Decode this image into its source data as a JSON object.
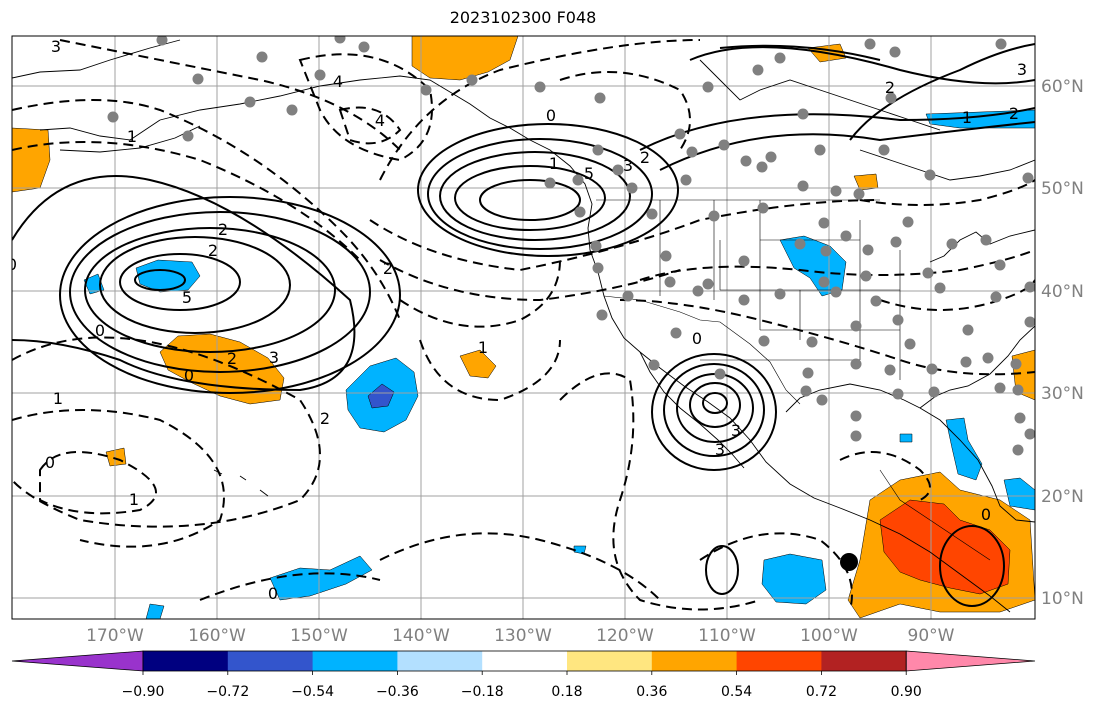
{
  "title": "2023102300 F048",
  "lon_labels": [
    "170°W",
    "160°W",
    "150°W",
    "140°W",
    "130°W",
    "120°W",
    "110°W",
    "100°W",
    "90°W"
  ],
  "lat_labels": [
    "60°N",
    "50°N",
    "40°N",
    "30°N",
    "20°N",
    "10°N"
  ],
  "colorbar": {
    "tick_labels": [
      "−0.90",
      "−0.72",
      "−0.54",
      "−0.36",
      "−0.18",
      "0.18",
      "0.36",
      "0.54",
      "0.72",
      "0.90"
    ],
    "colors": [
      "#9933cc",
      "#000080",
      "#3355cc",
      "#00b3ff",
      "#b3e0ff",
      "#ffffff",
      "#ffe680",
      "#ffa500",
      "#ff4500",
      "#b22222",
      "#ff88aa"
    ]
  },
  "contour_labels": [
    "3",
    "1",
    "4",
    "2",
    "0",
    "5",
    "3",
    "0",
    "2",
    "2",
    "2",
    "4",
    "5",
    "3",
    "2",
    "1",
    "1",
    "2",
    "0",
    "3",
    "1",
    "0",
    "1",
    "0",
    "1",
    "2",
    "0",
    "3",
    "2",
    "3",
    "0",
    "0"
  ],
  "colors": {
    "axis": "#808080",
    "grid": "#a0a0a0",
    "stations": "#808080",
    "marker": "#000000"
  }
}
